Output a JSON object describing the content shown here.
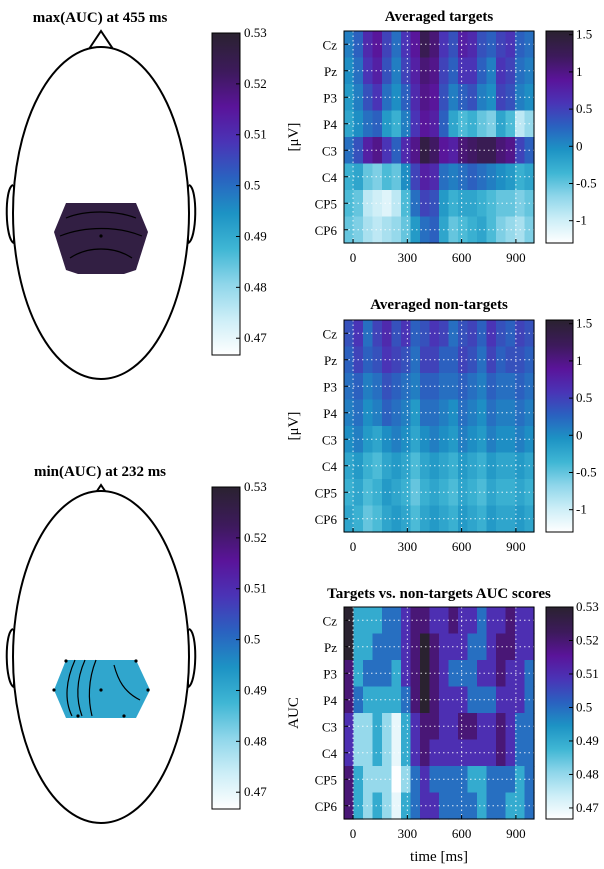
{
  "colors": {
    "stops": [
      "#ffffff",
      "#cdeef7",
      "#8fd6ea",
      "#3fb6d4",
      "#1d93c4",
      "#2a62c0",
      "#4a34b6",
      "#5a149a",
      "#3d1a5c",
      "#2a2230"
    ]
  },
  "topos": [
    {
      "title": "max(AUC) at 455 ms",
      "cbar_ticks": [
        "0.53",
        "0.52",
        "0.51",
        "0.5",
        "0.49",
        "0.48",
        "0.47"
      ],
      "cbar_range": [
        0.4667,
        0.53
      ],
      "fill_value": 0.527
    },
    {
      "title": "min(AUC) at 232 ms",
      "cbar_ticks": [
        "0.53",
        "0.52",
        "0.51",
        "0.5",
        "0.49",
        "0.48",
        "0.47"
      ],
      "cbar_range": [
        0.4667,
        0.53
      ],
      "fill_value": 0.491
    }
  ],
  "chart_data": [
    {
      "type": "heatmap",
      "title": "Averaged targets",
      "ylabel": "[μV]",
      "xlabel": "",
      "channels": [
        "Cz",
        "Pz",
        "P3",
        "P4",
        "C3",
        "C4",
        "CP5",
        "CP6"
      ],
      "x_ticks": [
        "0",
        "300",
        "600",
        "900"
      ],
      "x_range": [
        -50,
        1000
      ],
      "cbar_ticks": [
        "1.5",
        "1",
        "0.5",
        "0",
        "-0.5",
        "-1"
      ],
      "cbar_range": [
        -1.3,
        1.55
      ],
      "values": [
        [
          0.1,
          0.3,
          0.7,
          0.9,
          0.5,
          0.2,
          0.6,
          0.9,
          1.3,
          1.1,
          0.6,
          0.4,
          0.8,
          0.7,
          0.4,
          0.3,
          0.5,
          0.6,
          0.3,
          0.2
        ],
        [
          0.0,
          0.2,
          0.6,
          0.8,
          0.4,
          0.1,
          0.5,
          0.8,
          1.1,
          1.0,
          0.5,
          0.3,
          0.6,
          0.6,
          0.3,
          0.1,
          0.6,
          0.5,
          0.2,
          0.1
        ],
        [
          -0.1,
          0.1,
          0.4,
          0.6,
          0.2,
          0.0,
          0.3,
          0.7,
          1.0,
          0.9,
          0.4,
          0.1,
          0.3,
          0.4,
          0.1,
          0.0,
          0.5,
          0.4,
          0.1,
          0.0
        ],
        [
          -0.2,
          0.0,
          0.2,
          0.3,
          -0.1,
          -0.3,
          0.1,
          0.6,
          0.9,
          0.8,
          0.3,
          -0.2,
          -0.4,
          -0.3,
          -0.5,
          -0.6,
          -0.2,
          -0.4,
          -0.9,
          -0.7
        ],
        [
          0.2,
          0.4,
          0.8,
          1.0,
          0.6,
          0.3,
          0.7,
          1.0,
          1.4,
          1.2,
          0.9,
          0.8,
          1.1,
          1.2,
          1.3,
          1.3,
          1.1,
          1.0,
          0.5,
          0.3
        ],
        [
          -0.3,
          -0.2,
          -0.5,
          -0.6,
          -0.4,
          -0.5,
          0.0,
          0.5,
          0.8,
          0.7,
          0.2,
          0.1,
          0.2,
          0.3,
          0.2,
          0.1,
          0.0,
          -0.1,
          -0.3,
          -0.2
        ],
        [
          -0.4,
          -0.5,
          -0.9,
          -1.0,
          -1.1,
          -0.9,
          -0.4,
          0.2,
          0.5,
          0.4,
          -0.1,
          -0.3,
          -0.2,
          -0.2,
          -0.3,
          -0.4,
          -0.5,
          -0.5,
          -0.6,
          -0.5
        ],
        [
          -0.5,
          -0.6,
          -0.8,
          -0.9,
          -0.8,
          -0.7,
          -0.5,
          -0.1,
          0.2,
          0.3,
          -0.2,
          -0.5,
          -0.4,
          -0.3,
          -0.2,
          -0.4,
          -0.6,
          -0.7,
          -0.8,
          -0.6
        ]
      ]
    },
    {
      "type": "heatmap",
      "title": "Averaged non-targets",
      "ylabel": "[μV]",
      "xlabel": "",
      "channels": [
        "Cz",
        "Pz",
        "P3",
        "P4",
        "C3",
        "C4",
        "CP5",
        "CP6"
      ],
      "x_ticks": [
        "0",
        "300",
        "600",
        "900"
      ],
      "x_range": [
        -50,
        1000
      ],
      "cbar_ticks": [
        "1.5",
        "1",
        "0.5",
        "0",
        "-0.5",
        "-1"
      ],
      "cbar_range": [
        -1.3,
        1.55
      ],
      "values": [
        [
          0.4,
          0.6,
          0.2,
          0.5,
          0.7,
          0.4,
          0.6,
          0.3,
          0.4,
          0.6,
          0.5,
          0.2,
          0.4,
          0.5,
          0.3,
          0.6,
          0.4,
          0.3,
          0.5,
          0.4
        ],
        [
          0.3,
          0.5,
          0.3,
          0.4,
          0.6,
          0.5,
          0.4,
          0.2,
          0.5,
          0.5,
          0.3,
          0.3,
          0.5,
          0.4,
          0.2,
          0.5,
          0.3,
          0.4,
          0.4,
          0.3
        ],
        [
          0.2,
          0.3,
          0.1,
          0.2,
          0.4,
          0.3,
          0.2,
          0.1,
          0.3,
          0.3,
          0.2,
          0.2,
          0.3,
          0.2,
          0.1,
          0.3,
          0.2,
          0.2,
          0.3,
          0.2
        ],
        [
          0.1,
          0.2,
          0.0,
          0.1,
          0.3,
          0.2,
          0.1,
          -0.1,
          0.2,
          0.2,
          0.1,
          0.0,
          0.2,
          0.1,
          0.0,
          0.2,
          0.1,
          0.1,
          0.2,
          0.1
        ],
        [
          0.0,
          0.1,
          -0.1,
          -0.2,
          0.0,
          0.1,
          0.0,
          -0.2,
          0.0,
          0.1,
          0.0,
          -0.1,
          0.1,
          0.0,
          -0.1,
          0.1,
          0.0,
          0.0,
          0.1,
          0.0
        ],
        [
          -0.2,
          -0.1,
          -0.3,
          -0.4,
          -0.2,
          -0.1,
          -0.2,
          -0.4,
          -0.2,
          -0.1,
          -0.2,
          -0.3,
          -0.1,
          -0.2,
          -0.3,
          -0.1,
          -0.2,
          -0.2,
          -0.1,
          -0.2
        ],
        [
          -0.3,
          -0.2,
          -0.4,
          -0.3,
          -0.1,
          -0.2,
          -0.3,
          -0.5,
          -0.3,
          -0.2,
          -0.3,
          -0.4,
          -0.2,
          -0.3,
          -0.4,
          -0.2,
          -0.3,
          -0.3,
          -0.2,
          -0.3
        ],
        [
          -0.2,
          -0.3,
          -0.5,
          -0.4,
          -0.2,
          -0.1,
          -0.2,
          -0.4,
          -0.2,
          -0.1,
          -0.2,
          -0.3,
          -0.1,
          -0.2,
          -0.3,
          -0.1,
          -0.2,
          -0.2,
          -0.1,
          -0.2
        ]
      ]
    },
    {
      "type": "heatmap",
      "title": "Targets vs. non-targets AUC scores",
      "ylabel": "AUC",
      "xlabel": "time [ms]",
      "channels": [
        "Cz",
        "Pz",
        "P3",
        "P4",
        "C3",
        "C4",
        "CP5",
        "CP6"
      ],
      "x_ticks": [
        "0",
        "300",
        "600",
        "900"
      ],
      "x_range": [
        -50,
        1000
      ],
      "cbar_ticks": [
        "0.53",
        "0.52",
        "0.51",
        "0.5",
        "0.49",
        "0.48",
        "0.47"
      ],
      "cbar_range": [
        0.4667,
        0.53
      ],
      "values": [
        [
          0.53,
          0.49,
          0.49,
          0.49,
          0.5,
          0.5,
          0.51,
          0.52,
          0.52,
          0.51,
          0.51,
          0.52,
          0.51,
          0.51,
          0.5,
          0.51,
          0.51,
          0.52,
          0.51,
          0.51
        ],
        [
          0.53,
          0.49,
          0.49,
          0.5,
          0.5,
          0.5,
          0.51,
          0.52,
          0.53,
          0.52,
          0.51,
          0.51,
          0.51,
          0.5,
          0.5,
          0.51,
          0.52,
          0.52,
          0.51,
          0.51
        ],
        [
          0.52,
          0.49,
          0.5,
          0.5,
          0.5,
          0.49,
          0.51,
          0.52,
          0.53,
          0.52,
          0.51,
          0.5,
          0.5,
          0.5,
          0.51,
          0.51,
          0.52,
          0.51,
          0.51,
          0.5
        ],
        [
          0.52,
          0.5,
          0.49,
          0.49,
          0.49,
          0.49,
          0.5,
          0.52,
          0.53,
          0.52,
          0.51,
          0.51,
          0.51,
          0.5,
          0.5,
          0.5,
          0.51,
          0.51,
          0.51,
          0.5
        ],
        [
          0.51,
          0.48,
          0.48,
          0.49,
          0.48,
          0.47,
          0.49,
          0.51,
          0.52,
          0.52,
          0.51,
          0.51,
          0.52,
          0.52,
          0.51,
          0.51,
          0.52,
          0.51,
          0.5,
          0.5
        ],
        [
          0.51,
          0.48,
          0.48,
          0.49,
          0.48,
          0.47,
          0.49,
          0.51,
          0.52,
          0.51,
          0.51,
          0.51,
          0.51,
          0.51,
          0.51,
          0.51,
          0.52,
          0.51,
          0.5,
          0.5
        ],
        [
          0.52,
          0.49,
          0.48,
          0.48,
          0.48,
          0.467,
          0.48,
          0.5,
          0.51,
          0.5,
          0.5,
          0.5,
          0.5,
          0.49,
          0.49,
          0.5,
          0.5,
          0.5,
          0.49,
          0.5
        ],
        [
          0.52,
          0.49,
          0.48,
          0.49,
          0.48,
          0.47,
          0.49,
          0.5,
          0.51,
          0.51,
          0.5,
          0.5,
          0.5,
          0.5,
          0.49,
          0.5,
          0.5,
          0.49,
          0.49,
          0.5
        ]
      ]
    }
  ]
}
